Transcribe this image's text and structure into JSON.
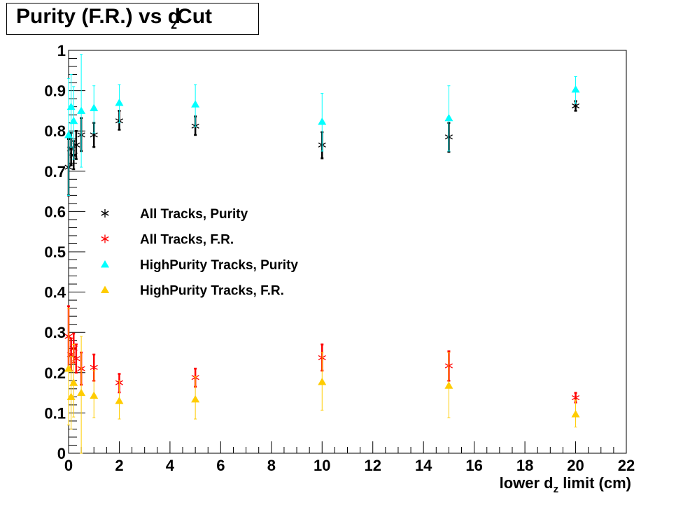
{
  "chart_data": {
    "type": "scatter",
    "title": {
      "pre": "Purity (F.R.) vs d",
      "sub": "z",
      "post": "Cut"
    },
    "xlabel": {
      "pre": "lower d",
      "sub": "z",
      "post": " limit (cm)"
    },
    "ylabel": "",
    "xlim": [
      0,
      22
    ],
    "ylim": [
      0,
      1
    ],
    "x_ticks": [
      "0",
      "2",
      "4",
      "6",
      "8",
      "10",
      "12",
      "14",
      "16",
      "18",
      "20",
      "22"
    ],
    "y_ticks": [
      "0",
      "0.1",
      "0.2",
      "0.3",
      "0.4",
      "0.5",
      "0.6",
      "0.7",
      "0.8",
      "0.9",
      "1"
    ],
    "grid": false,
    "legend_position": "middle-left",
    "series": [
      {
        "name": "All Tracks, Purity",
        "marker": "star",
        "color": "#000000",
        "points": [
          {
            "x": 0,
            "y": 0.71,
            "lo": 0.64,
            "hi": 0.78
          },
          {
            "x": 0.1,
            "y": 0.755,
            "lo": 0.715,
            "hi": 0.795
          },
          {
            "x": 0.2,
            "y": 0.74,
            "lo": 0.705,
            "hi": 0.775
          },
          {
            "x": 0.3,
            "y": 0.765,
            "lo": 0.73,
            "hi": 0.8
          },
          {
            "x": 0.5,
            "y": 0.79,
            "lo": 0.75,
            "hi": 0.832
          },
          {
            "x": 1,
            "y": 0.79,
            "lo": 0.76,
            "hi": 0.82
          },
          {
            "x": 2,
            "y": 0.825,
            "lo": 0.803,
            "hi": 0.85
          },
          {
            "x": 5,
            "y": 0.812,
            "lo": 0.79,
            "hi": 0.836
          },
          {
            "x": 10,
            "y": 0.765,
            "lo": 0.732,
            "hi": 0.797
          },
          {
            "x": 15,
            "y": 0.785,
            "lo": 0.748,
            "hi": 0.82
          },
          {
            "x": 20,
            "y": 0.862,
            "lo": 0.85,
            "hi": 0.874
          }
        ]
      },
      {
        "name": "All Tracks, F.R.",
        "marker": "star",
        "color": "#ff0000",
        "points": [
          {
            "x": 0,
            "y": 0.29,
            "lo": 0.21,
            "hi": 0.365
          },
          {
            "x": 0.1,
            "y": 0.245,
            "lo": 0.205,
            "hi": 0.285
          },
          {
            "x": 0.2,
            "y": 0.26,
            "lo": 0.225,
            "hi": 0.297
          },
          {
            "x": 0.3,
            "y": 0.235,
            "lo": 0.2,
            "hi": 0.27
          },
          {
            "x": 0.5,
            "y": 0.21,
            "lo": 0.17,
            "hi": 0.25
          },
          {
            "x": 1,
            "y": 0.213,
            "lo": 0.18,
            "hi": 0.245
          },
          {
            "x": 2,
            "y": 0.175,
            "lo": 0.151,
            "hi": 0.197
          },
          {
            "x": 5,
            "y": 0.188,
            "lo": 0.165,
            "hi": 0.21
          },
          {
            "x": 10,
            "y": 0.237,
            "lo": 0.205,
            "hi": 0.27
          },
          {
            "x": 15,
            "y": 0.217,
            "lo": 0.18,
            "hi": 0.253
          },
          {
            "x": 20,
            "y": 0.138,
            "lo": 0.126,
            "hi": 0.15
          }
        ]
      },
      {
        "name": "HighPurity Tracks, Purity",
        "marker": "triangle",
        "color": "#00ffff",
        "points": [
          {
            "x": 0,
            "y": 0.79,
            "lo": 0.64,
            "hi": 0.93
          },
          {
            "x": 0.1,
            "y": 0.86,
            "lo": 0.76,
            "hi": 0.94
          },
          {
            "x": 0.2,
            "y": 0.825,
            "lo": 0.73,
            "hi": 0.91
          },
          {
            "x": 0.5,
            "y": 0.85,
            "lo": 0.71,
            "hi": 0.99
          },
          {
            "x": 1,
            "y": 0.857,
            "lo": 0.795,
            "hi": 0.912
          },
          {
            "x": 2,
            "y": 0.87,
            "lo": 0.82,
            "hi": 0.915
          },
          {
            "x": 5,
            "y": 0.866,
            "lo": 0.81,
            "hi": 0.915
          },
          {
            "x": 10,
            "y": 0.823,
            "lo": 0.75,
            "hi": 0.893
          },
          {
            "x": 15,
            "y": 0.832,
            "lo": 0.75,
            "hi": 0.912
          },
          {
            "x": 20,
            "y": 0.903,
            "lo": 0.868,
            "hi": 0.935
          }
        ]
      },
      {
        "name": "HighPurity Tracks, F.R.",
        "marker": "triangle",
        "color": "#ffcc00",
        "points": [
          {
            "x": 0,
            "y": 0.21,
            "lo": 0.07,
            "hi": 0.36
          },
          {
            "x": 0.1,
            "y": 0.14,
            "lo": 0.06,
            "hi": 0.24
          },
          {
            "x": 0.2,
            "y": 0.175,
            "lo": 0.09,
            "hi": 0.27
          },
          {
            "x": 0.5,
            "y": 0.15,
            "lo": 0.0,
            "hi": 0.29
          },
          {
            "x": 1,
            "y": 0.143,
            "lo": 0.088,
            "hi": 0.205
          },
          {
            "x": 2,
            "y": 0.13,
            "lo": 0.085,
            "hi": 0.18
          },
          {
            "x": 5,
            "y": 0.134,
            "lo": 0.085,
            "hi": 0.19
          },
          {
            "x": 10,
            "y": 0.177,
            "lo": 0.107,
            "hi": 0.25
          },
          {
            "x": 15,
            "y": 0.168,
            "lo": 0.088,
            "hi": 0.25
          },
          {
            "x": 20,
            "y": 0.097,
            "lo": 0.065,
            "hi": 0.132
          }
        ]
      }
    ]
  }
}
